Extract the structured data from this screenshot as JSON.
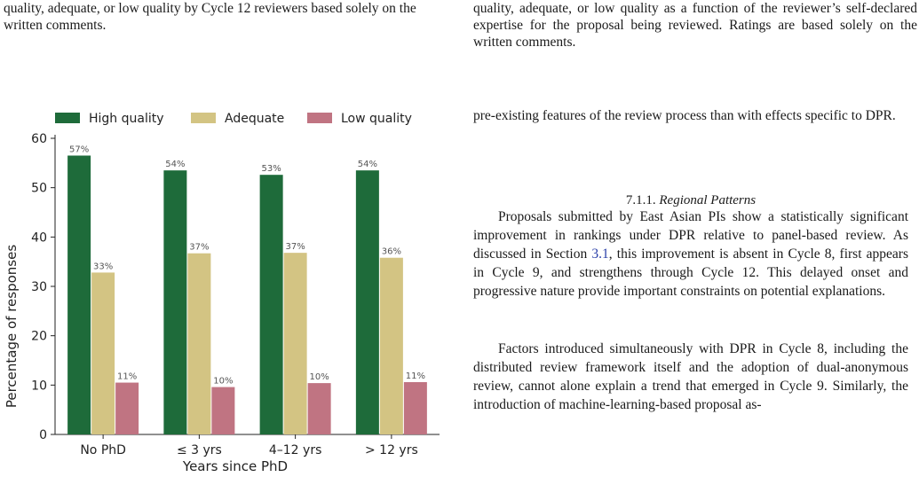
{
  "left_caption": "quality, adequate, or low quality by Cycle 12 reviewers based solely on the written comments.",
  "right_column": {
    "caption": "quality, adequate, or low quality as a function of the reviewer’s self-declared expertise for the proposal being reviewed. Ratings are based solely on the written comments.",
    "paragraph1": "pre-existing features of the review process than with effects specific to DPR.",
    "subsection_number": "7.1.1.",
    "subsection_title": "Regional Patterns",
    "paragraph2_a": "Proposals submitted by East Asian PIs show a statistically significant improvement in rankings under DPR relative to panel-based review. As discussed in Section ",
    "paragraph2_ref": "3.1",
    "paragraph2_b": ", this improvement is absent in Cycle 8, first appears in Cycle 9, and strengthens through Cycle 12. This delayed onset and progressive nature provide important constraints on potential explanations.",
    "paragraph3": "Factors introduced simultaneously with DPR in Cycle 8, including the distributed review framework itself and the adoption of dual-anonymous review, cannot alone explain a trend that emerged in Cycle 9. Similarly, the introduction of machine-learning-based proposal as-"
  },
  "colors": {
    "high": "#1e6b3a",
    "adequate": "#d3c483",
    "low": "#c07482"
  },
  "chart_data": {
    "type": "bar",
    "xlabel": "Years since PhD",
    "ylabel": "Percentage of responses",
    "ylim": [
      0,
      60
    ],
    "yticks": [
      0,
      10,
      20,
      30,
      40,
      50,
      60
    ],
    "categories": [
      "No PhD",
      "≤ 3 yrs",
      "4–12 yrs",
      "> 12 yrs"
    ],
    "legend_position": "top",
    "grid": false,
    "series": [
      {
        "name": "High quality",
        "values": [
          56.5,
          53.5,
          52.6,
          53.5
        ],
        "labels": [
          "57%",
          "54%",
          "53%",
          "54%"
        ]
      },
      {
        "name": "Adequate",
        "values": [
          32.8,
          36.7,
          36.8,
          35.8
        ],
        "labels": [
          "33%",
          "37%",
          "37%",
          "36%"
        ]
      },
      {
        "name": "Low quality",
        "values": [
          10.5,
          9.6,
          10.4,
          10.6
        ],
        "labels": [
          "11%",
          "10%",
          "10%",
          "11%"
        ]
      }
    ]
  }
}
